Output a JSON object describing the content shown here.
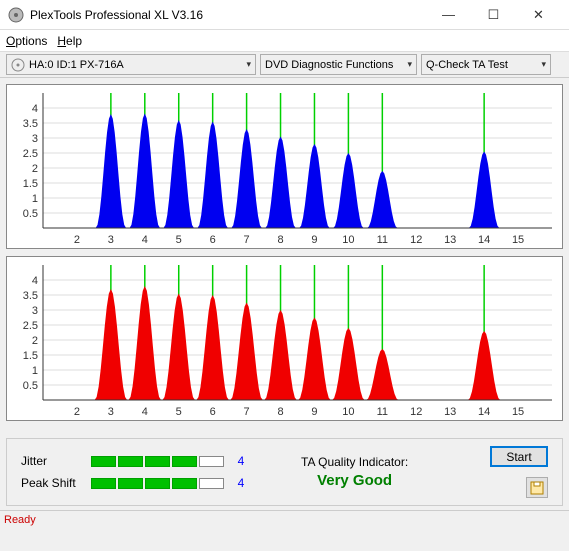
{
  "window": {
    "title": "PlexTools Professional XL V3.16",
    "minimize": "—",
    "maximize": "☐",
    "close": "✕"
  },
  "menu": {
    "options": "Options",
    "help": "Help"
  },
  "toolbar": {
    "drive_label": "HA:0 ID:1   PX-716A",
    "func_label": "DVD Diagnostic Functions",
    "test_label": "Q-Check TA Test"
  },
  "chart1": {
    "type": "bar-histogram",
    "fill": "#0000f0",
    "bg": "#ffffff",
    "ylim": [
      0,
      4.5
    ],
    "ytick_step": 0.5,
    "xlim": [
      1,
      16
    ],
    "xtick_step": 1,
    "yticks": [
      "0.5",
      "1",
      "1.5",
      "2",
      "2.5",
      "3",
      "3.5",
      "4"
    ],
    "xticks": [
      "2",
      "3",
      "4",
      "5",
      "6",
      "7",
      "8",
      "9",
      "10",
      "11",
      "12",
      "13",
      "14",
      "15"
    ],
    "peaks": [
      {
        "x": 3.0,
        "h": 3.8
      },
      {
        "x": 4.0,
        "h": 3.82
      },
      {
        "x": 5.0,
        "h": 3.6
      },
      {
        "x": 6.0,
        "h": 3.55
      },
      {
        "x": 7.0,
        "h": 3.3
      },
      {
        "x": 8.0,
        "h": 3.05
      },
      {
        "x": 9.0,
        "h": 2.8
      },
      {
        "x": 10.0,
        "h": 2.5
      },
      {
        "x": 11.0,
        "h": 1.9
      },
      {
        "x": 14.0,
        "h": 2.55
      }
    ],
    "half_width": 0.45,
    "vlines_color": "#00d000"
  },
  "chart2": {
    "type": "bar-histogram",
    "fill": "#f00000",
    "bg": "#ffffff",
    "ylim": [
      0,
      4.5
    ],
    "ytick_step": 0.5,
    "xlim": [
      1,
      16
    ],
    "xtick_step": 1,
    "yticks": [
      "0.5",
      "1",
      "1.5",
      "2",
      "2.5",
      "3",
      "3.5",
      "4"
    ],
    "xticks": [
      "2",
      "3",
      "4",
      "5",
      "6",
      "7",
      "8",
      "9",
      "10",
      "11",
      "12",
      "13",
      "14",
      "15"
    ],
    "peaks": [
      {
        "x": 3.0,
        "h": 3.7
      },
      {
        "x": 4.0,
        "h": 3.8
      },
      {
        "x": 5.0,
        "h": 3.55
      },
      {
        "x": 6.0,
        "h": 3.5
      },
      {
        "x": 7.0,
        "h": 3.25
      },
      {
        "x": 8.0,
        "h": 3.0
      },
      {
        "x": 9.0,
        "h": 2.75
      },
      {
        "x": 10.0,
        "h": 2.4
      },
      {
        "x": 11.0,
        "h": 1.7
      },
      {
        "x": 14.0,
        "h": 2.3
      }
    ],
    "half_width": 0.48,
    "vlines_color": "#00d000"
  },
  "stats": {
    "jitter_label": "Jitter",
    "jitter_bars": 4,
    "jitter_total": 5,
    "jitter_val": "4",
    "peakshift_label": "Peak Shift",
    "peakshift_bars": 4,
    "peakshift_total": 5,
    "peakshift_val": "4",
    "quality_label": "TA Quality Indicator:",
    "quality_val": "Very Good",
    "quality_color": "#008000",
    "start_label": "Start"
  },
  "status": {
    "text": "Ready"
  }
}
